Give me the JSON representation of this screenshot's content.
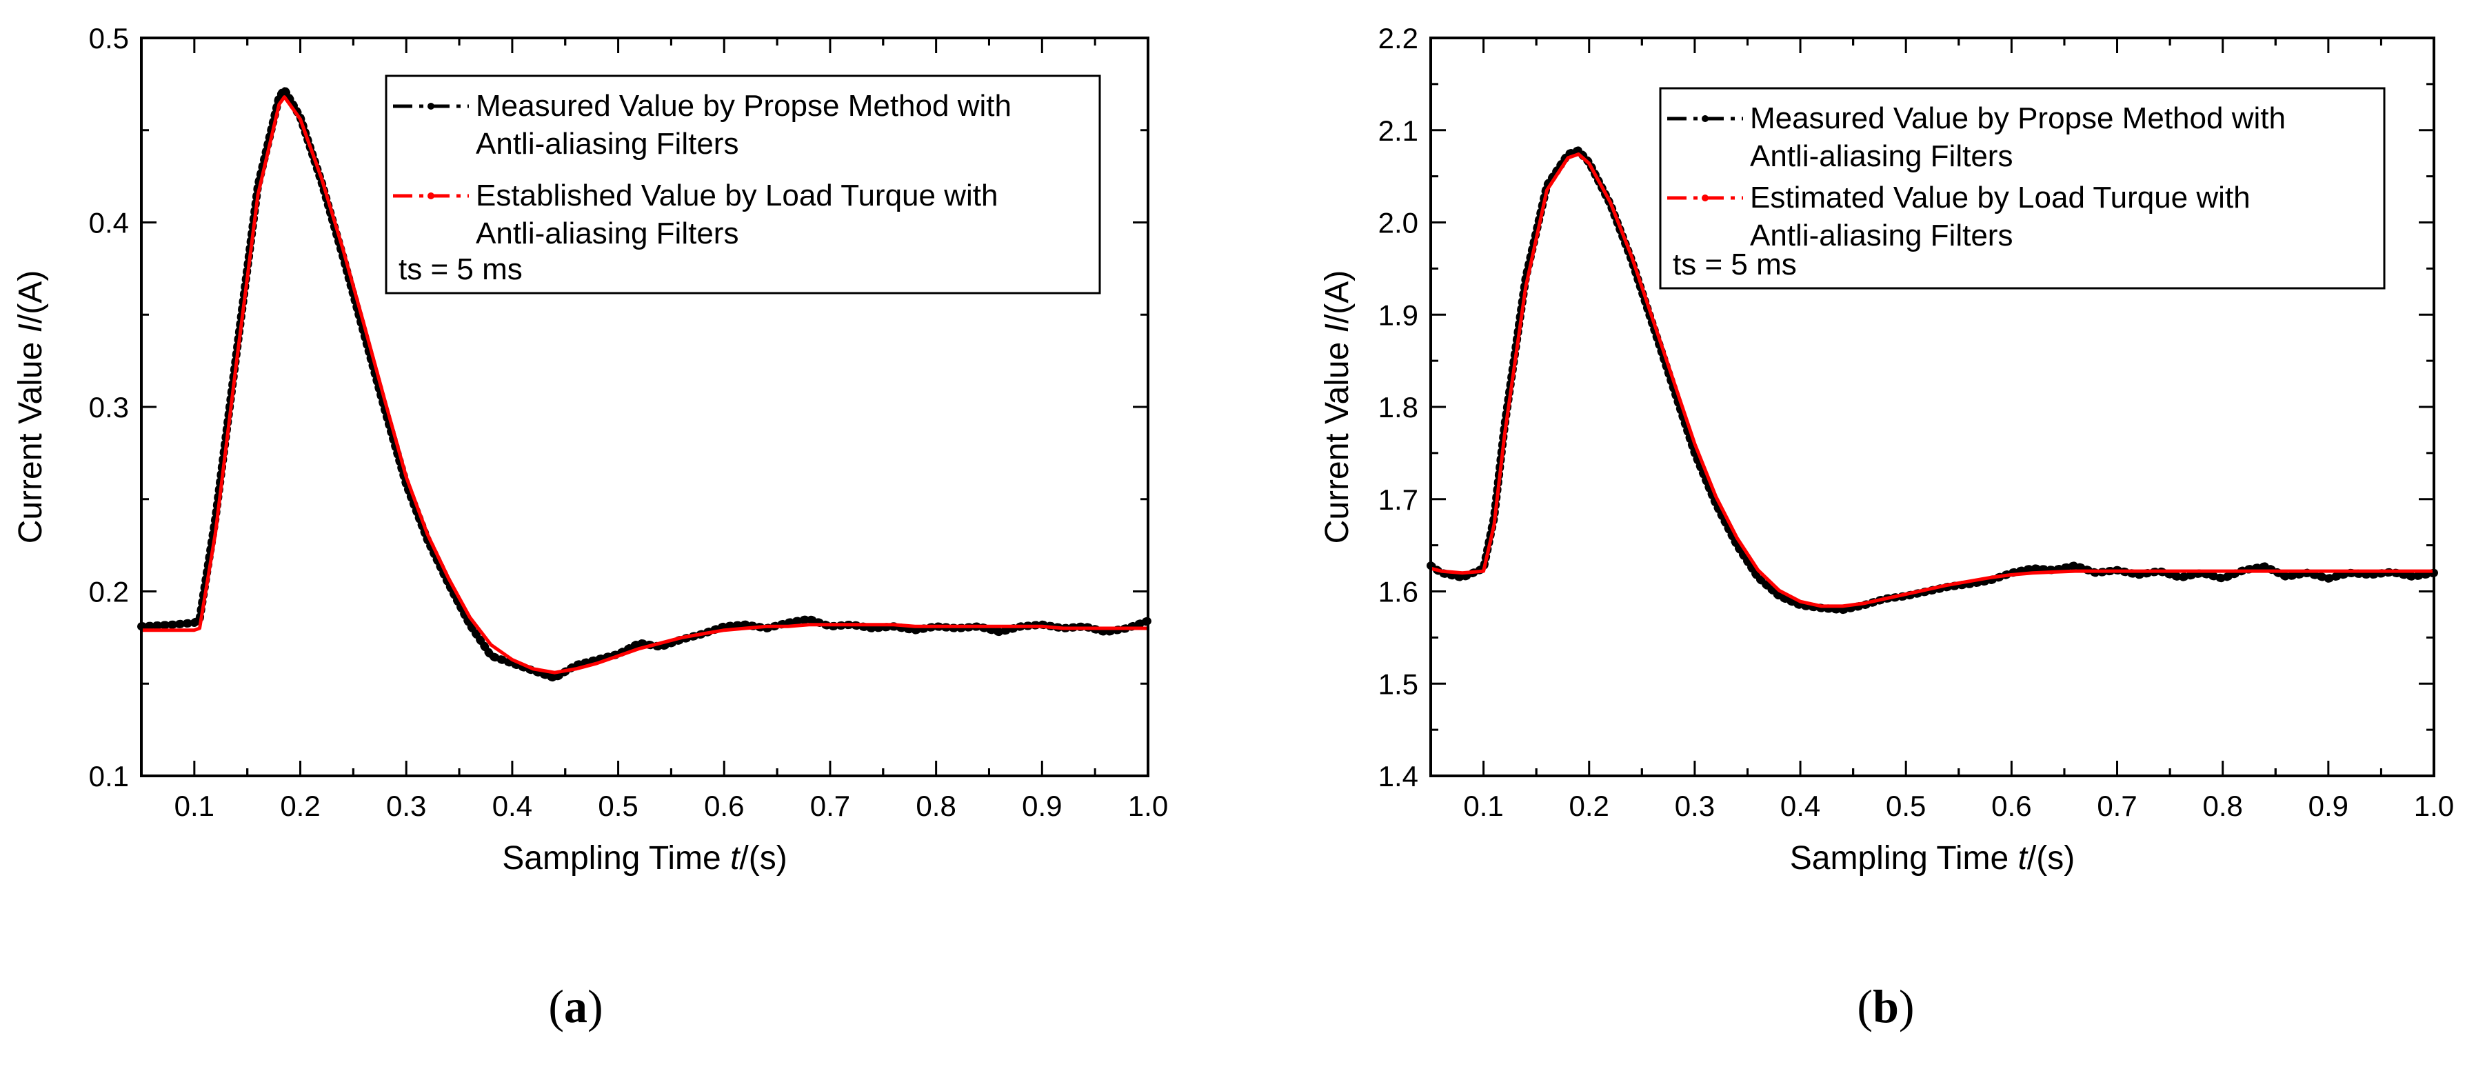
{
  "figure": {
    "panel_labels": [
      "(a)",
      "(b)"
    ]
  },
  "chart_data": [
    {
      "type": "line",
      "panel_label": "(a)",
      "xlabel": "Sampling Time t/(s)",
      "ylabel": "Current Value I/(A)",
      "xlim": [
        0.05,
        1.0
      ],
      "ylim": [
        0.1,
        0.5
      ],
      "xticks": [
        0.1,
        0.2,
        0.3,
        0.4,
        0.5,
        0.6,
        0.7,
        0.8,
        0.9,
        1.0
      ],
      "xtick_labels": [
        "0.1",
        "0.2",
        "0.3",
        "0.4",
        "0.5",
        "0.6",
        "0.7",
        "0.8",
        "0.9",
        "1.0"
      ],
      "yticks": [
        0.1,
        0.2,
        0.3,
        0.4,
        0.5
      ],
      "ytick_labels": [
        "0.1",
        "0.2",
        "0.3",
        "0.4",
        "0.5"
      ],
      "grid": false,
      "legend_position": "top-right",
      "legend": {
        "series_1": [
          "Measured Value by Propse Method with",
          "Antli-aliasing Filters"
        ],
        "series_2": [
          "Established Value by  Load Turque with",
          "Antli-aliasing Filters"
        ],
        "note": "ts = 5 ms"
      },
      "series": [
        {
          "name": "Measured Value by Propse Method with Antli-aliasing Filters",
          "color": "#000000",
          "x": [
            0.05,
            0.08,
            0.1,
            0.105,
            0.12,
            0.14,
            0.16,
            0.18,
            0.185,
            0.2,
            0.22,
            0.24,
            0.26,
            0.28,
            0.3,
            0.32,
            0.34,
            0.36,
            0.38,
            0.4,
            0.42,
            0.44,
            0.46,
            0.48,
            0.5,
            0.52,
            0.54,
            0.56,
            0.58,
            0.6,
            0.62,
            0.64,
            0.66,
            0.68,
            0.7,
            0.72,
            0.74,
            0.76,
            0.78,
            0.8,
            0.82,
            0.84,
            0.86,
            0.88,
            0.9,
            0.92,
            0.94,
            0.96,
            0.98,
            1.0
          ],
          "y": [
            0.181,
            0.182,
            0.183,
            0.185,
            0.24,
            0.33,
            0.42,
            0.468,
            0.472,
            0.457,
            0.422,
            0.382,
            0.34,
            0.298,
            0.258,
            0.228,
            0.204,
            0.182,
            0.165,
            0.161,
            0.157,
            0.153,
            0.16,
            0.163,
            0.166,
            0.172,
            0.17,
            0.174,
            0.177,
            0.181,
            0.182,
            0.18,
            0.183,
            0.185,
            0.181,
            0.182,
            0.18,
            0.181,
            0.179,
            0.181,
            0.18,
            0.181,
            0.178,
            0.181,
            0.182,
            0.18,
            0.181,
            0.178,
            0.18,
            0.184
          ]
        },
        {
          "name": "Established Value by Load Turque with Antli-aliasing Filters",
          "color": "#ff0000",
          "x": [
            0.05,
            0.08,
            0.1,
            0.105,
            0.12,
            0.14,
            0.16,
            0.18,
            0.185,
            0.2,
            0.22,
            0.24,
            0.26,
            0.28,
            0.3,
            0.32,
            0.34,
            0.36,
            0.38,
            0.4,
            0.42,
            0.44,
            0.46,
            0.48,
            0.5,
            0.52,
            0.54,
            0.56,
            0.58,
            0.6,
            0.62,
            0.64,
            0.66,
            0.68,
            0.7,
            0.72,
            0.74,
            0.76,
            0.78,
            0.8,
            0.82,
            0.84,
            0.86,
            0.88,
            0.9,
            0.92,
            0.94,
            0.96,
            0.98,
            1.0
          ],
          "y": [
            0.179,
            0.179,
            0.179,
            0.18,
            0.232,
            0.325,
            0.415,
            0.464,
            0.468,
            0.456,
            0.424,
            0.386,
            0.345,
            0.303,
            0.262,
            0.231,
            0.207,
            0.186,
            0.171,
            0.163,
            0.158,
            0.156,
            0.158,
            0.161,
            0.165,
            0.169,
            0.172,
            0.175,
            0.177,
            0.179,
            0.18,
            0.181,
            0.181,
            0.182,
            0.182,
            0.182,
            0.182,
            0.182,
            0.181,
            0.181,
            0.181,
            0.181,
            0.181,
            0.181,
            0.181,
            0.18,
            0.18,
            0.18,
            0.18,
            0.18
          ]
        }
      ]
    },
    {
      "type": "line",
      "panel_label": "(b)",
      "xlabel": "Sampling Time t/(s)",
      "ylabel": "Current Value I/(A)",
      "xlim": [
        0.05,
        1.0
      ],
      "ylim": [
        1.4,
        2.2
      ],
      "xticks": [
        0.1,
        0.2,
        0.3,
        0.4,
        0.5,
        0.6,
        0.7,
        0.8,
        0.9,
        1.0
      ],
      "xtick_labels": [
        "0.1",
        "0.2",
        "0.3",
        "0.4",
        "0.5",
        "0.6",
        "0.7",
        "0.8",
        "0.9",
        "1.0"
      ],
      "yticks": [
        1.4,
        1.5,
        1.6,
        1.7,
        1.8,
        1.9,
        2.0,
        2.1,
        2.2
      ],
      "ytick_labels": [
        "1.4",
        "1.5",
        "1.6",
        "1.7",
        "1.8",
        "1.9",
        "2.0",
        "2.1",
        "2.2"
      ],
      "grid": false,
      "legend_position": "top-right",
      "legend": {
        "series_1": [
          "Measured Value by  Propse Method with",
          "Antli-aliasing Filters"
        ],
        "series_2": [
          "Estimated Value by Load Turque with",
          "Antli-aliasing Filters"
        ],
        "note": "ts = 5 ms"
      },
      "series": [
        {
          "name": "Measured Value by Propse Method with Antli-aliasing Filters",
          "color": "#000000",
          "x": [
            0.05,
            0.06,
            0.08,
            0.1,
            0.11,
            0.12,
            0.14,
            0.16,
            0.18,
            0.19,
            0.2,
            0.22,
            0.24,
            0.26,
            0.28,
            0.3,
            0.32,
            0.34,
            0.36,
            0.38,
            0.4,
            0.42,
            0.44,
            0.46,
            0.48,
            0.5,
            0.52,
            0.54,
            0.56,
            0.58,
            0.6,
            0.62,
            0.64,
            0.66,
            0.68,
            0.7,
            0.72,
            0.74,
            0.76,
            0.78,
            0.8,
            0.82,
            0.84,
            0.86,
            0.88,
            0.9,
            0.92,
            0.94,
            0.96,
            0.98,
            1.0
          ],
          "y": [
            1.628,
            1.62,
            1.615,
            1.625,
            1.68,
            1.78,
            1.94,
            2.04,
            2.074,
            2.078,
            2.065,
            2.02,
            1.96,
            1.89,
            1.82,
            1.75,
            1.695,
            1.65,
            1.615,
            1.595,
            1.585,
            1.582,
            1.58,
            1.585,
            1.592,
            1.595,
            1.6,
            1.605,
            1.608,
            1.612,
            1.62,
            1.625,
            1.623,
            1.628,
            1.62,
            1.623,
            1.618,
            1.622,
            1.615,
            1.62,
            1.614,
            1.623,
            1.627,
            1.616,
            1.62,
            1.614,
            1.62,
            1.618,
            1.621,
            1.616,
            1.62
          ]
        },
        {
          "name": "Estimated Value by Load Turque with Antli-aliasing Filters",
          "color": "#ff0000",
          "x": [
            0.05,
            0.06,
            0.08,
            0.1,
            0.11,
            0.12,
            0.14,
            0.16,
            0.18,
            0.19,
            0.2,
            0.22,
            0.24,
            0.26,
            0.28,
            0.3,
            0.32,
            0.34,
            0.36,
            0.38,
            0.4,
            0.42,
            0.44,
            0.46,
            0.48,
            0.5,
            0.52,
            0.54,
            0.56,
            0.58,
            0.6,
            0.62,
            0.64,
            0.66,
            0.68,
            0.7,
            0.72,
            0.74,
            0.76,
            0.78,
            0.8,
            0.82,
            0.84,
            0.86,
            0.88,
            0.9,
            0.92,
            0.94,
            0.96,
            0.98,
            1.0
          ],
          "y": [
            1.625,
            1.622,
            1.62,
            1.622,
            1.672,
            1.77,
            1.93,
            2.035,
            2.07,
            2.074,
            2.064,
            2.022,
            1.964,
            1.896,
            1.828,
            1.76,
            1.703,
            1.658,
            1.623,
            1.601,
            1.589,
            1.584,
            1.584,
            1.587,
            1.592,
            1.597,
            1.602,
            1.607,
            1.611,
            1.615,
            1.618,
            1.62,
            1.621,
            1.622,
            1.622,
            1.622,
            1.622,
            1.622,
            1.622,
            1.622,
            1.622,
            1.622,
            1.622,
            1.622,
            1.622,
            1.622,
            1.622,
            1.622,
            1.622,
            1.622,
            1.622
          ]
        }
      ]
    }
  ]
}
